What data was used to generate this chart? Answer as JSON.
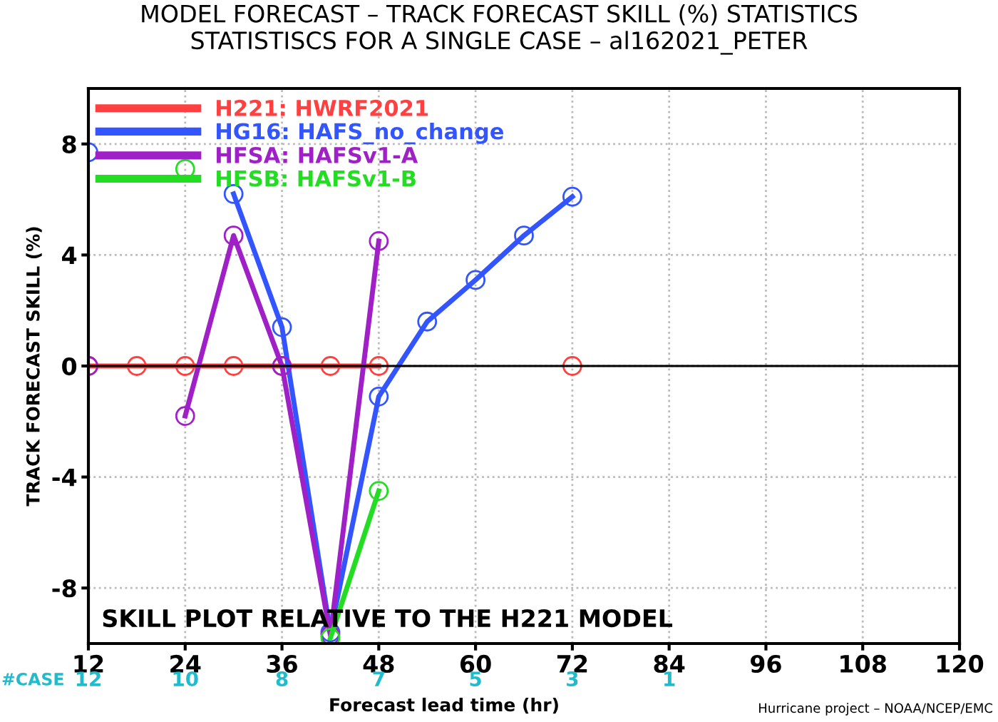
{
  "chart_data": {
    "type": "line",
    "title": "MODEL FORECAST – TRACK FORECAST SKILL (%) STATISTICS",
    "subtitle": "STATISTISCS FOR A SINGLE CASE – al162021_PETER",
    "xlabel": "Forecast lead time (hr)",
    "ylabel": "TRACK FORECAST SKILL (%)",
    "x": [
      12,
      18,
      24,
      30,
      36,
      42,
      48,
      54,
      60,
      66,
      72
    ],
    "series": [
      {
        "name": "H221: HWRF2021",
        "color": "#ff4040",
        "values": [
          0,
          0,
          0,
          0,
          0,
          0,
          0,
          null,
          null,
          null,
          0
        ]
      },
      {
        "name": "HG16: HAFS_no_change",
        "color": "#3355ff",
        "values": [
          7.7,
          null,
          null,
          6.2,
          1.4,
          -9.6,
          -1.1,
          1.6,
          3.1,
          4.7,
          6.1
        ]
      },
      {
        "name": "HFSA: HAFSv1-A",
        "color": "#a020c8",
        "values": [
          0,
          null,
          -1.8,
          4.7,
          0,
          -9.7,
          4.5,
          null,
          null,
          null,
          null
        ]
      },
      {
        "name": "HFSB: HAFSv1-B",
        "color": "#22dd22",
        "values": [
          null,
          null,
          7.1,
          null,
          null,
          -9.8,
          -4.5,
          null,
          null,
          null,
          null
        ]
      }
    ],
    "xlim": [
      12,
      120
    ],
    "xticks": [
      12,
      24,
      36,
      48,
      60,
      72,
      84,
      96,
      108,
      120
    ],
    "ylim": [
      -10,
      10
    ],
    "yticks": [
      {
        "value": -8,
        "label": "-8"
      },
      {
        "value": -4,
        "label": "-4"
      },
      0,
      4,
      8
    ],
    "ref_lines": [
      {
        "axis": "y",
        "value": 0,
        "color": "#000000"
      }
    ],
    "annotations": [
      "SKILL PLOT RELATIVE TO THE H221 MODEL",
      "Hurricane project – NOAA/NCEP/EMC",
      "#CASE",
      "12",
      "10",
      "8",
      "7",
      "5",
      "3",
      "1"
    ],
    "grid": true,
    "legend": "top left",
    "marker": "circle",
    "line_style": "solid"
  }
}
